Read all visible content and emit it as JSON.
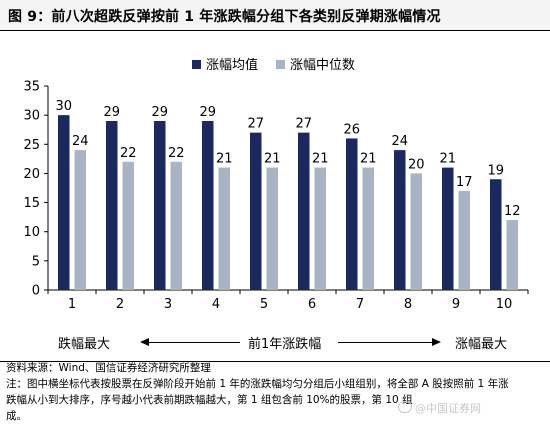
{
  "figure": {
    "title": "图 9：前八次超跌反弹按前 1 年涨跌幅分组下各类别反弹期涨幅情况"
  },
  "chart_data": {
    "type": "bar",
    "categories": [
      "1",
      "2",
      "3",
      "4",
      "5",
      "6",
      "7",
      "8",
      "9",
      "10"
    ],
    "series": [
      {
        "name": "涨幅均值",
        "color": "#1b2a5e",
        "values": [
          30,
          29,
          29,
          29,
          27,
          27,
          26,
          24,
          21,
          19
        ]
      },
      {
        "name": "涨幅中位数",
        "color": "#a6b4c6",
        "values": [
          24,
          22,
          22,
          21,
          21,
          21,
          21,
          20,
          17,
          12
        ]
      }
    ],
    "value_labels": {
      "涨幅均值": [
        "30",
        "29",
        "29",
        "29",
        "27",
        "27",
        "26",
        "24",
        "21",
        "19"
      ],
      "涨幅中位数": [
        "24",
        "22",
        "22",
        "21",
        "21",
        "21",
        "21",
        "20",
        "17",
        "12"
      ]
    },
    "yticks": [
      "0",
      "5",
      "10",
      "15",
      "20",
      "25",
      "30",
      "35"
    ],
    "ylim": [
      0,
      35
    ],
    "grid": false,
    "legend": "top-center",
    "xlabel_left": "跌幅最大",
    "xlabel_center": "前1年涨跌幅",
    "xlabel_right": "涨幅最大"
  },
  "source": {
    "line1": "资料来源：Wind、国信证券经济研究所整理",
    "line2": "注：图中横坐标代表按股票在反弹阶段开始前 1 年的涨跌幅均匀分组后小组组别，将全部 A 股按照前 1 年涨",
    "line3": "跌幅从小到大排序，序号越小代表前期跌幅越大，第 1 组包含前 10%的股票，第 10 组",
    "line4": "成。"
  },
  "watermark": {
    "text": "@中国证券网"
  }
}
